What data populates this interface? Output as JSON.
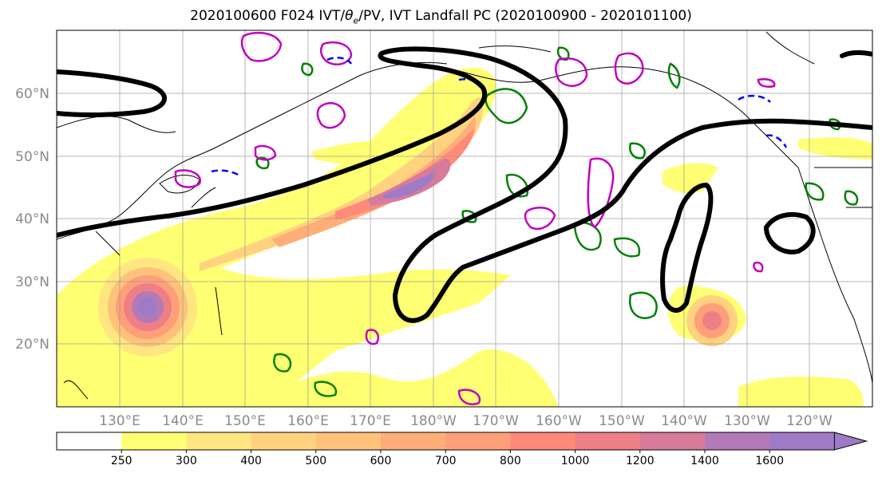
{
  "title_prefix": "2020100600 F024 IVT/",
  "title_theta": "θ",
  "title_sub": "e",
  "title_suffix": "/PV, IVT Landfall PC (2020100900 - 2020101100)",
  "lat_labels": [
    "60°N",
    "50°N",
    "40°N",
    "30°N",
    "20°N"
  ],
  "lon_labels": [
    "130°E",
    "140°E",
    "150°E",
    "160°E",
    "170°E",
    "180°W",
    "170°W",
    "160°W",
    "150°W",
    "140°W",
    "130°W",
    "120°W"
  ],
  "colorbar": {
    "levels": [
      "250",
      "300",
      "400",
      "500",
      "600",
      "700",
      "800",
      "1000",
      "1200",
      "1400",
      "1600"
    ],
    "colors": [
      "#ffffff",
      "#ffff73",
      "#ffe680",
      "#ffd280",
      "#ffc27a",
      "#ffae78",
      "#ff9f7a",
      "#ff8a7a",
      "#ee7f86",
      "#d77b9a",
      "#b27bb8",
      "#9f7bc7"
    ]
  },
  "legend_colors": {
    "contour_black": "#000000",
    "theta_green": "#008000",
    "pv_magenta": "#c000c0",
    "blue_dashed": "#0000ff"
  }
}
